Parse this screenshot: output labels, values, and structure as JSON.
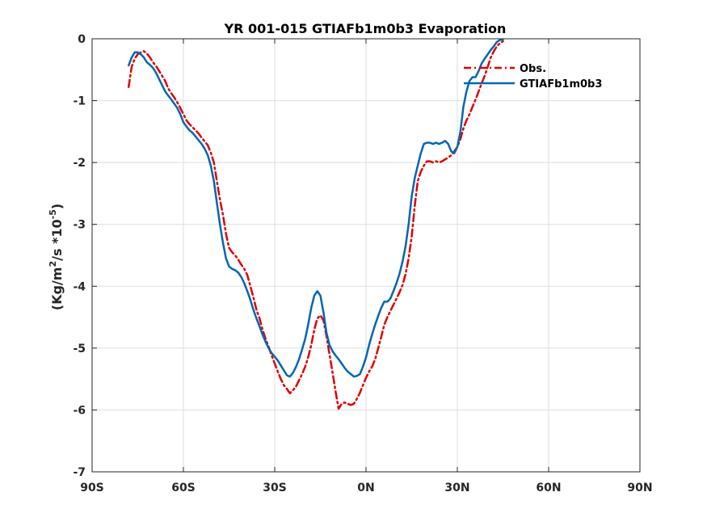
{
  "chart_data": {
    "type": "line",
    "title": "YR 001-015 GTIAFb1m0b3 Evaporation",
    "xlabel": "",
    "ylabel_parts": {
      "prefix": "(Kg/m",
      "sup1": "2",
      "mid": "/s *10",
      "sup2": "-5",
      "suffix": ")"
    },
    "xlim": [
      -90,
      90
    ],
    "ylim": [
      -7,
      0
    ],
    "xticks": [
      -90,
      -60,
      -30,
      0,
      30,
      60,
      90
    ],
    "xtick_labels": [
      "90S",
      "60S",
      "30S",
      "0N",
      "30N",
      "60N",
      "90N"
    ],
    "yticks": [
      -7,
      -6,
      -5,
      -4,
      -3,
      -2,
      -1,
      0
    ],
    "ytick_labels": [
      "-7",
      "-6",
      "-5",
      "-4",
      "-3",
      "-2",
      "-1",
      "0"
    ],
    "grid": true,
    "legend_position": "top-right",
    "series": [
      {
        "name": "Obs.",
        "color": "#e00000",
        "style": "dash-dot",
        "points": [
          [
            -78,
            -0.78
          ],
          [
            -77,
            -0.45
          ],
          [
            -76,
            -0.32
          ],
          [
            -75,
            -0.25
          ],
          [
            -74,
            -0.22
          ],
          [
            -73,
            -0.2
          ],
          [
            -72,
            -0.24
          ],
          [
            -71,
            -0.3
          ],
          [
            -70,
            -0.38
          ],
          [
            -69,
            -0.44
          ],
          [
            -68,
            -0.52
          ],
          [
            -67,
            -0.6
          ],
          [
            -66,
            -0.68
          ],
          [
            -65,
            -0.8
          ],
          [
            -64,
            -0.88
          ],
          [
            -63,
            -0.95
          ],
          [
            -62,
            -1.03
          ],
          [
            -61,
            -1.12
          ],
          [
            -60,
            -1.22
          ],
          [
            -59,
            -1.32
          ],
          [
            -58,
            -1.38
          ],
          [
            -57,
            -1.43
          ],
          [
            -56,
            -1.48
          ],
          [
            -55,
            -1.53
          ],
          [
            -54,
            -1.6
          ],
          [
            -53,
            -1.66
          ],
          [
            -52,
            -1.72
          ],
          [
            -51,
            -1.84
          ],
          [
            -50,
            -2.0
          ],
          [
            -49,
            -2.3
          ],
          [
            -48,
            -2.6
          ],
          [
            -47,
            -2.85
          ],
          [
            -46,
            -3.15
          ],
          [
            -45,
            -3.38
          ],
          [
            -44,
            -3.45
          ],
          [
            -43,
            -3.5
          ],
          [
            -42,
            -3.57
          ],
          [
            -41,
            -3.65
          ],
          [
            -40,
            -3.72
          ],
          [
            -39,
            -3.82
          ],
          [
            -38,
            -4.0
          ],
          [
            -37,
            -4.18
          ],
          [
            -36,
            -4.38
          ],
          [
            -35,
            -4.52
          ],
          [
            -34,
            -4.7
          ],
          [
            -33,
            -4.85
          ],
          [
            -32,
            -4.98
          ],
          [
            -31,
            -5.12
          ],
          [
            -30,
            -5.25
          ],
          [
            -29,
            -5.38
          ],
          [
            -28,
            -5.5
          ],
          [
            -27,
            -5.6
          ],
          [
            -26,
            -5.66
          ],
          [
            -25,
            -5.73
          ],
          [
            -24,
            -5.68
          ],
          [
            -23,
            -5.62
          ],
          [
            -22,
            -5.52
          ],
          [
            -21,
            -5.42
          ],
          [
            -20,
            -5.3
          ],
          [
            -19,
            -5.15
          ],
          [
            -18,
            -4.95
          ],
          [
            -17,
            -4.7
          ],
          [
            -16,
            -4.52
          ],
          [
            -15,
            -4.47
          ],
          [
            -14,
            -4.55
          ],
          [
            -13,
            -4.8
          ],
          [
            -12,
            -5.1
          ],
          [
            -11,
            -5.4
          ],
          [
            -10,
            -5.7
          ],
          [
            -9,
            -5.98
          ],
          [
            -8,
            -5.9
          ],
          [
            -7,
            -5.88
          ],
          [
            -6,
            -5.9
          ],
          [
            -5,
            -5.92
          ],
          [
            -4,
            -5.9
          ],
          [
            -3,
            -5.82
          ],
          [
            -2,
            -5.72
          ],
          [
            -1,
            -5.6
          ],
          [
            0,
            -5.48
          ],
          [
            1,
            -5.38
          ],
          [
            2,
            -5.3
          ],
          [
            3,
            -5.18
          ],
          [
            4,
            -5.0
          ],
          [
            5,
            -4.82
          ],
          [
            6,
            -4.62
          ],
          [
            7,
            -4.5
          ],
          [
            8,
            -4.4
          ],
          [
            9,
            -4.3
          ],
          [
            10,
            -4.2
          ],
          [
            11,
            -4.1
          ],
          [
            12,
            -3.98
          ],
          [
            13,
            -3.8
          ],
          [
            14,
            -3.55
          ],
          [
            15,
            -3.2
          ],
          [
            16,
            -2.7
          ],
          [
            17,
            -2.3
          ],
          [
            18,
            -2.15
          ],
          [
            19,
            -2.05
          ],
          [
            20,
            -1.98
          ],
          [
            21,
            -1.98
          ],
          [
            22,
            -2.0
          ],
          [
            23,
            -1.98
          ],
          [
            24,
            -2.0
          ],
          [
            25,
            -1.98
          ],
          [
            26,
            -1.95
          ],
          [
            27,
            -1.92
          ],
          [
            28,
            -1.88
          ],
          [
            29,
            -1.82
          ],
          [
            30,
            -1.75
          ],
          [
            31,
            -1.62
          ],
          [
            32,
            -1.45
          ],
          [
            33,
            -1.32
          ],
          [
            34,
            -1.22
          ],
          [
            35,
            -1.1
          ],
          [
            36,
            -0.98
          ],
          [
            37,
            -0.85
          ],
          [
            38,
            -0.72
          ],
          [
            39,
            -0.6
          ],
          [
            40,
            -0.45
          ],
          [
            41,
            -0.3
          ],
          [
            42,
            -0.2
          ],
          [
            43,
            -0.12
          ],
          [
            44,
            -0.07
          ],
          [
            45,
            -0.04
          ]
        ]
      },
      {
        "name": "GTIAFb1m0b3",
        "color": "#0066b3",
        "style": "solid",
        "points": [
          [
            -78,
            -0.43
          ],
          [
            -77,
            -0.3
          ],
          [
            -76,
            -0.22
          ],
          [
            -75,
            -0.22
          ],
          [
            -74,
            -0.25
          ],
          [
            -73,
            -0.3
          ],
          [
            -72,
            -0.38
          ],
          [
            -71,
            -0.42
          ],
          [
            -70,
            -0.47
          ],
          [
            -69,
            -0.55
          ],
          [
            -68,
            -0.65
          ],
          [
            -67,
            -0.75
          ],
          [
            -66,
            -0.85
          ],
          [
            -65,
            -0.92
          ],
          [
            -64,
            -0.98
          ],
          [
            -63,
            -1.05
          ],
          [
            -62,
            -1.12
          ],
          [
            -61,
            -1.22
          ],
          [
            -60,
            -1.35
          ],
          [
            -59,
            -1.42
          ],
          [
            -58,
            -1.48
          ],
          [
            -57,
            -1.52
          ],
          [
            -56,
            -1.58
          ],
          [
            -55,
            -1.64
          ],
          [
            -54,
            -1.7
          ],
          [
            -53,
            -1.78
          ],
          [
            -52,
            -1.88
          ],
          [
            -51,
            -2.05
          ],
          [
            -50,
            -2.3
          ],
          [
            -49,
            -2.65
          ],
          [
            -48,
            -3.0
          ],
          [
            -47,
            -3.3
          ],
          [
            -46,
            -3.55
          ],
          [
            -45,
            -3.68
          ],
          [
            -44,
            -3.72
          ],
          [
            -43,
            -3.74
          ],
          [
            -42,
            -3.78
          ],
          [
            -41,
            -3.85
          ],
          [
            -40,
            -3.95
          ],
          [
            -39,
            -4.08
          ],
          [
            -38,
            -4.22
          ],
          [
            -37,
            -4.38
          ],
          [
            -36,
            -4.52
          ],
          [
            -35,
            -4.65
          ],
          [
            -34,
            -4.78
          ],
          [
            -33,
            -4.9
          ],
          [
            -32,
            -5.0
          ],
          [
            -31,
            -5.08
          ],
          [
            -30,
            -5.14
          ],
          [
            -29,
            -5.2
          ],
          [
            -28,
            -5.28
          ],
          [
            -27,
            -5.36
          ],
          [
            -26,
            -5.44
          ],
          [
            -25,
            -5.46
          ],
          [
            -24,
            -5.4
          ],
          [
            -23,
            -5.3
          ],
          [
            -22,
            -5.18
          ],
          [
            -21,
            -5.02
          ],
          [
            -20,
            -4.85
          ],
          [
            -19,
            -4.62
          ],
          [
            -18,
            -4.35
          ],
          [
            -17,
            -4.15
          ],
          [
            -16,
            -4.08
          ],
          [
            -15,
            -4.15
          ],
          [
            -14,
            -4.42
          ],
          [
            -13,
            -4.75
          ],
          [
            -12,
            -4.95
          ],
          [
            -11,
            -5.05
          ],
          [
            -10,
            -5.12
          ],
          [
            -9,
            -5.18
          ],
          [
            -8,
            -5.25
          ],
          [
            -7,
            -5.32
          ],
          [
            -6,
            -5.38
          ],
          [
            -5,
            -5.42
          ],
          [
            -4,
            -5.46
          ],
          [
            -3,
            -5.45
          ],
          [
            -2,
            -5.42
          ],
          [
            -1,
            -5.3
          ],
          [
            0,
            -5.15
          ],
          [
            1,
            -4.95
          ],
          [
            2,
            -4.78
          ],
          [
            3,
            -4.62
          ],
          [
            4,
            -4.48
          ],
          [
            5,
            -4.35
          ],
          [
            6,
            -4.25
          ],
          [
            7,
            -4.25
          ],
          [
            8,
            -4.2
          ],
          [
            9,
            -4.08
          ],
          [
            10,
            -3.95
          ],
          [
            11,
            -3.8
          ],
          [
            12,
            -3.6
          ],
          [
            13,
            -3.35
          ],
          [
            14,
            -3.0
          ],
          [
            15,
            -2.55
          ],
          [
            16,
            -2.25
          ],
          [
            17,
            -2.05
          ],
          [
            18,
            -1.85
          ],
          [
            19,
            -1.7
          ],
          [
            20,
            -1.68
          ],
          [
            21,
            -1.68
          ],
          [
            22,
            -1.7
          ],
          [
            23,
            -1.68
          ],
          [
            24,
            -1.7
          ],
          [
            25,
            -1.68
          ],
          [
            26,
            -1.65
          ],
          [
            27,
            -1.7
          ],
          [
            28,
            -1.82
          ],
          [
            29,
            -1.85
          ],
          [
            30,
            -1.75
          ],
          [
            31,
            -1.5
          ],
          [
            32,
            -1.1
          ],
          [
            33,
            -0.85
          ],
          [
            34,
            -0.68
          ],
          [
            35,
            -0.62
          ],
          [
            36,
            -0.62
          ],
          [
            37,
            -0.52
          ],
          [
            38,
            -0.4
          ],
          [
            39,
            -0.32
          ],
          [
            40,
            -0.25
          ],
          [
            41,
            -0.18
          ],
          [
            42,
            -0.12
          ],
          [
            43,
            -0.05
          ],
          [
            44,
            -0.02
          ],
          [
            45,
            -0.01
          ]
        ]
      }
    ]
  }
}
